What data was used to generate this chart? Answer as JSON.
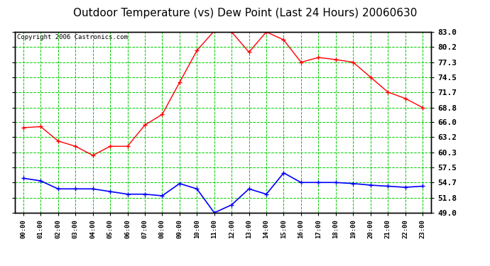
{
  "title": "Outdoor Temperature (vs) Dew Point (Last 24 Hours) 20060630",
  "copyright": "Copyright 2006 Castronics.com",
  "hours": [
    "00:00",
    "01:00",
    "02:00",
    "03:00",
    "04:00",
    "05:00",
    "06:00",
    "07:00",
    "08:00",
    "09:00",
    "10:00",
    "11:00",
    "12:00",
    "13:00",
    "14:00",
    "15:00",
    "16:00",
    "17:00",
    "18:00",
    "19:00",
    "20:00",
    "21:00",
    "22:00",
    "23:00"
  ],
  "temp": [
    65.0,
    65.2,
    62.5,
    61.5,
    59.8,
    61.5,
    61.5,
    65.5,
    67.5,
    73.5,
    79.5,
    83.2,
    83.0,
    79.2,
    83.0,
    81.5,
    77.3,
    78.2,
    77.8,
    77.3,
    74.5,
    71.7,
    70.5,
    68.8
  ],
  "dewpoint": [
    55.5,
    55.0,
    53.5,
    53.5,
    53.5,
    53.0,
    52.5,
    52.5,
    52.2,
    54.5,
    53.5,
    49.0,
    50.5,
    53.5,
    52.5,
    56.5,
    54.7,
    54.7,
    54.7,
    54.5,
    54.2,
    54.0,
    53.8,
    54.0
  ],
  "temp_color": "#FF0000",
  "dew_color": "#0000FF",
  "bg_color": "#FFFFFF",
  "plot_bg": "#FFFFFF",
  "grid_color": "#00CC00",
  "yticks": [
    49.0,
    51.8,
    54.7,
    57.5,
    60.3,
    63.2,
    66.0,
    68.8,
    71.7,
    74.5,
    77.3,
    80.2,
    83.0
  ],
  "ylim": [
    49.0,
    83.0
  ],
  "title_fontsize": 11,
  "copyright_fontsize": 6.5
}
